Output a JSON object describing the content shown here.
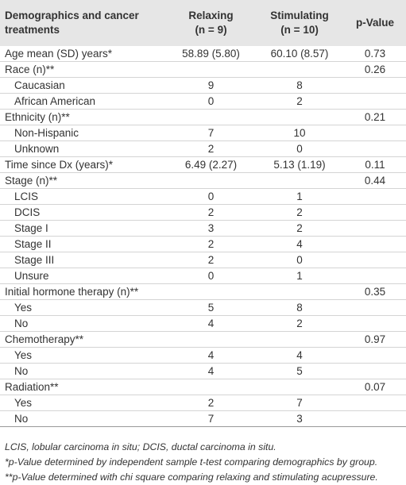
{
  "table": {
    "header": [
      [
        "Demographics and cancer treatments"
      ],
      [
        "Relaxing",
        "(n = 9)"
      ],
      [
        "Stimulating",
        "(n = 10)"
      ],
      [
        "p-Value"
      ]
    ],
    "rows": [
      [
        "Age mean (SD) years*",
        "58.89 (5.80)",
        "60.10 (8.57)",
        "0.73"
      ],
      [
        "Race (n)**",
        null,
        null,
        "0.26"
      ],
      [
        "Caucasian",
        "9",
        "8",
        null
      ],
      [
        "African American",
        "0",
        "2",
        null
      ],
      [
        "Ethnicity (n)**",
        null,
        null,
        "0.21"
      ],
      [
        "Non-Hispanic",
        "7",
        "10",
        null
      ],
      [
        "Unknown",
        "2",
        "0",
        null
      ],
      [
        "Time since Dx (years)*",
        "6.49 (2.27)",
        "5.13 (1.19)",
        "0.11"
      ],
      [
        "Stage (n)**",
        null,
        null,
        "0.44"
      ],
      [
        "LCIS",
        "0",
        "1",
        null
      ],
      [
        "DCIS",
        "2",
        "2",
        null
      ],
      [
        "Stage I",
        "3",
        "2",
        null
      ],
      [
        "Stage II",
        "2",
        "4",
        null
      ],
      [
        "Stage III",
        "2",
        "0",
        null
      ],
      [
        "Unsure",
        "0",
        "1",
        null
      ],
      [
        "Initial hormone therapy (n)**",
        null,
        null,
        "0.35"
      ],
      [
        "Yes",
        "5",
        "8",
        null
      ],
      [
        "No",
        "4",
        "2",
        null
      ],
      [
        "Chemotherapy**",
        null,
        null,
        "0.97"
      ],
      [
        "Yes",
        "4",
        "4",
        null
      ],
      [
        "No",
        "4",
        "5",
        null
      ],
      [
        "Radiation**",
        null,
        null,
        "0.07"
      ],
      [
        "Yes",
        "2",
        "7",
        null
      ],
      [
        "No",
        "7",
        "3",
        null
      ]
    ],
    "footnotes": [
      "LCIS, lobular carcinoma in situ; DCIS, ductal carcinoma in situ.",
      "*p-Value determined by independent sample t-test comparing demographics by group.",
      "**p-Value determined with chi square comparing relaxing and stimulating acupressure."
    ]
  }
}
